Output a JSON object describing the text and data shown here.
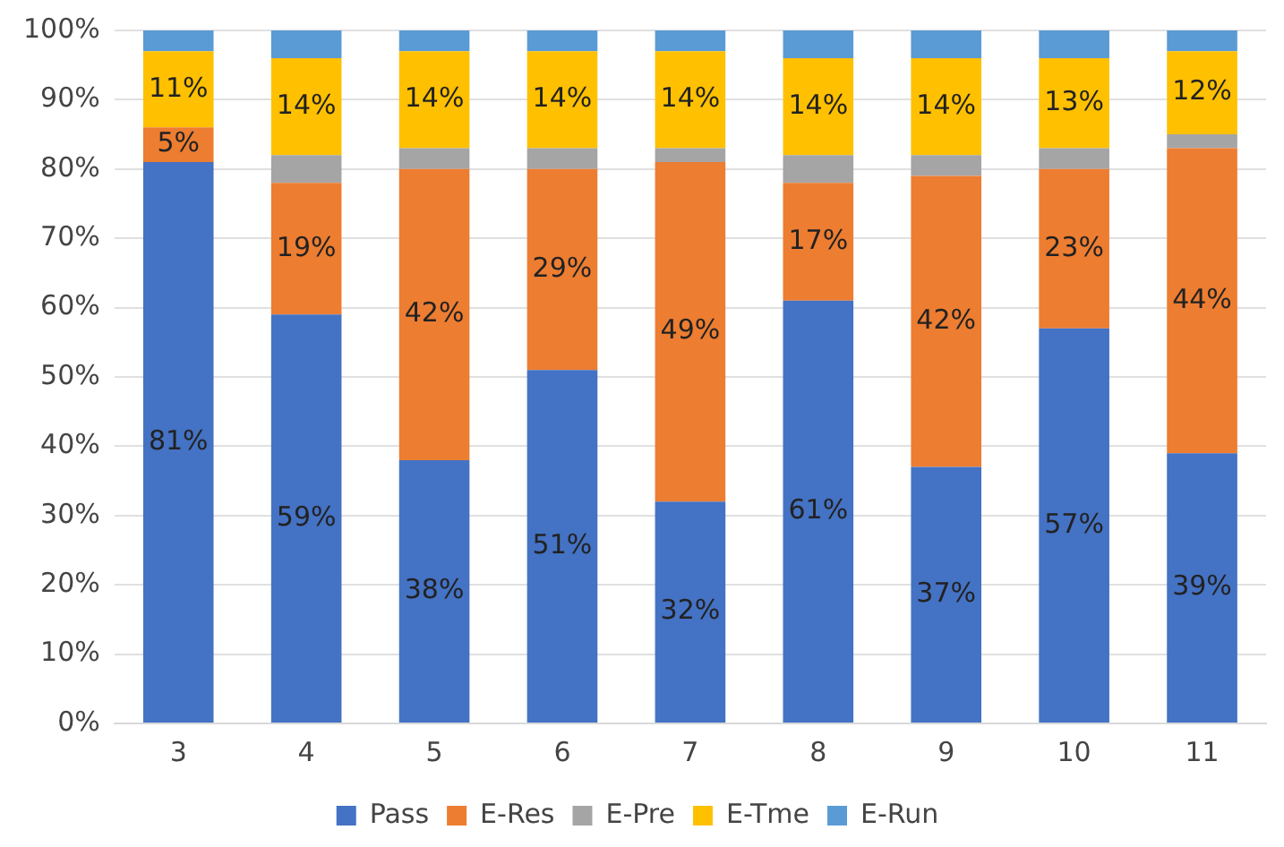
{
  "chart_data": {
    "type": "bar",
    "stacked": true,
    "categories": [
      "3",
      "4",
      "5",
      "6",
      "7",
      "8",
      "9",
      "10",
      "11"
    ],
    "series": [
      {
        "name": "Pass",
        "color": "#4472c4",
        "values": [
          81,
          59,
          38,
          51,
          32,
          61,
          37,
          57,
          39
        ],
        "value_labels": [
          "81%",
          "59%",
          "38%",
          "51%",
          "32%",
          "61%",
          "37%",
          "57%",
          "39%"
        ]
      },
      {
        "name": "E-Res",
        "color": "#ed7d31",
        "values": [
          5,
          19,
          42,
          29,
          49,
          17,
          42,
          23,
          44
        ],
        "value_labels": [
          "5%",
          "19%",
          "42%",
          "29%",
          "49%",
          "17%",
          "42%",
          "23%",
          "44%"
        ]
      },
      {
        "name": "E-Pre",
        "color": "#a5a5a5",
        "values": [
          0,
          4,
          3,
          3,
          2,
          4,
          3,
          3,
          2
        ]
      },
      {
        "name": "E-Tme",
        "color": "#ffc000",
        "values": [
          11,
          14,
          14,
          14,
          14,
          14,
          14,
          13,
          12
        ],
        "value_labels": [
          "11%",
          "14%",
          "14%",
          "14%",
          "14%",
          "14%",
          "14%",
          "13%",
          "12%"
        ]
      },
      {
        "name": "E-Run",
        "color": "#5b9bd5",
        "values": [
          3,
          4,
          3,
          3,
          3,
          4,
          4,
          4,
          3
        ]
      }
    ],
    "ylim": [
      0,
      100
    ],
    "yticks": [
      {
        "value": 0,
        "label": "0%"
      },
      {
        "value": 10,
        "label": "10%"
      },
      {
        "value": 20,
        "label": "20%"
      },
      {
        "value": 30,
        "label": "30%"
      },
      {
        "value": 40,
        "label": "40%"
      },
      {
        "value": 50,
        "label": "50%"
      },
      {
        "value": 60,
        "label": "60%"
      },
      {
        "value": 70,
        "label": "70%"
      },
      {
        "value": 80,
        "label": "80%"
      },
      {
        "value": 90,
        "label": "90%"
      },
      {
        "value": 100,
        "label": "100%"
      }
    ],
    "grid": "y",
    "legend": "bottom"
  }
}
